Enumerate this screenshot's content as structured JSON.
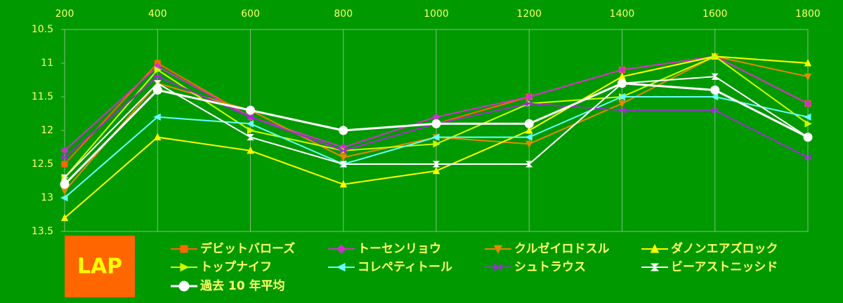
{
  "chart_data": {
    "type": "line",
    "badge": "LAP",
    "categories": [
      "200",
      "400",
      "600",
      "800",
      "1000",
      "1200",
      "1400",
      "1600",
      "1800"
    ],
    "ylim": [
      13.5,
      10.5
    ],
    "yticks": [
      10.5,
      11,
      11.5,
      12,
      12.5,
      13,
      13.5
    ],
    "grid": true,
    "series": [
      {
        "name": "デビットバローズ",
        "color": "#ff6600",
        "marker": "square",
        "values": [
          12.5,
          11.0,
          11.8,
          12.3,
          11.9,
          11.5,
          11.1,
          10.9,
          11.6
        ]
      },
      {
        "name": "トーセンリョウ",
        "color": "#cc33cc",
        "marker": "diamond",
        "values": [
          12.3,
          11.05,
          11.8,
          12.25,
          11.8,
          11.5,
          11.1,
          10.9,
          11.6
        ]
      },
      {
        "name": "クルゼイロドスル",
        "color": "#e08a00",
        "marker": "tri-down",
        "values": [
          12.9,
          11.3,
          11.7,
          12.4,
          12.1,
          12.2,
          11.6,
          10.9,
          11.2
        ]
      },
      {
        "name": "ダノンエアズロック",
        "color": "#ffff00",
        "marker": "tri-up",
        "values": [
          13.3,
          12.1,
          12.3,
          12.8,
          12.6,
          12.0,
          11.2,
          10.9,
          11.0
        ]
      },
      {
        "name": "トップナイフ",
        "color": "#ccff00",
        "marker": "tri-right",
        "values": [
          12.7,
          11.1,
          12.0,
          12.3,
          12.2,
          11.6,
          11.5,
          10.9,
          11.9
        ]
      },
      {
        "name": "コレペティトール",
        "color": "#66ffff",
        "marker": "tri-left",
        "values": [
          13.0,
          11.8,
          11.9,
          12.5,
          12.1,
          12.1,
          11.5,
          11.5,
          11.8
        ]
      },
      {
        "name": "シュトラウス",
        "color": "#9933cc",
        "marker": "bowtie",
        "values": [
          12.4,
          11.2,
          11.8,
          12.3,
          11.9,
          11.6,
          11.7,
          11.7,
          12.4
        ]
      },
      {
        "name": "ビーアストニッシド",
        "color": "#ffffff",
        "marker": "hourglass",
        "values": [
          12.7,
          11.3,
          12.1,
          12.5,
          12.5,
          12.5,
          11.3,
          11.2,
          12.1
        ]
      },
      {
        "name": "過去 10 年平均",
        "color": "#ffffff",
        "marker": "circle",
        "width": 3,
        "values": [
          12.8,
          11.4,
          11.7,
          12.0,
          11.9,
          11.9,
          11.3,
          11.4,
          12.1
        ]
      }
    ]
  }
}
